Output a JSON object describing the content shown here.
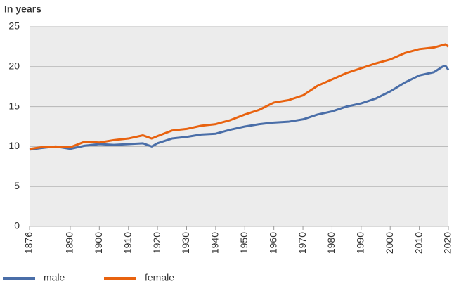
{
  "chart_data": {
    "type": "line",
    "title": "In years",
    "x": [
      1876,
      1880,
      1885,
      1890,
      1895,
      1900,
      1905,
      1910,
      1915,
      1918,
      1920,
      1925,
      1930,
      1935,
      1940,
      1945,
      1950,
      1955,
      1960,
      1965,
      1970,
      1975,
      1980,
      1985,
      1990,
      1995,
      2000,
      2005,
      2010,
      2015,
      2018,
      2019,
      2020
    ],
    "series": [
      {
        "name": "male",
        "color": "#4a6ea8",
        "values": [
          9.6,
          9.8,
          10.0,
          9.7,
          10.1,
          10.3,
          10.2,
          10.3,
          10.4,
          10.0,
          10.4,
          11.0,
          11.2,
          11.5,
          11.6,
          12.1,
          12.5,
          12.8,
          13.0,
          13.1,
          13.4,
          14.0,
          14.4,
          15.0,
          15.4,
          16.0,
          16.9,
          18.0,
          18.9,
          19.3,
          20.0,
          20.1,
          19.6
        ]
      },
      {
        "name": "female",
        "color": "#e8620f",
        "values": [
          9.7,
          9.9,
          10.0,
          9.9,
          10.6,
          10.5,
          10.8,
          11.0,
          11.4,
          11.0,
          11.3,
          12.0,
          12.2,
          12.6,
          12.8,
          13.3,
          14.0,
          14.6,
          15.5,
          15.8,
          16.4,
          17.6,
          18.4,
          19.2,
          19.8,
          20.4,
          20.9,
          21.7,
          22.2,
          22.4,
          22.7,
          22.8,
          22.5
        ]
      }
    ],
    "xlim": [
      1876,
      2020
    ],
    "xticks": [
      1876,
      1890,
      1900,
      1910,
      1920,
      1930,
      1940,
      1950,
      1960,
      1970,
      1980,
      1990,
      2000,
      2010,
      2020
    ],
    "ylim": [
      0,
      25
    ],
    "yticks": [
      0,
      5,
      10,
      15,
      20,
      25
    ],
    "grid": true,
    "legend": "bottom"
  }
}
